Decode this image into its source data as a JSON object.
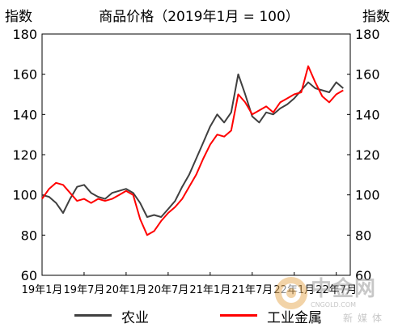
{
  "chart_data": {
    "type": "line",
    "title": "商品价格（2019年1月 = 100）",
    "ylabel_left": "指数",
    "ylabel_right": "指数",
    "ylim": [
      60,
      180
    ],
    "yticks": [
      60,
      80,
      100,
      120,
      140,
      160,
      180
    ],
    "xlim": [
      "2019-01",
      "2022-09"
    ],
    "xticks": [
      "19年1月",
      "19年7月",
      "20年1月",
      "20年7月",
      "21年1月",
      "21年7月",
      "22年1月",
      "22年7月"
    ],
    "grid": false,
    "legend_position": "bottom",
    "series": [
      {
        "name": "农业",
        "color": "#404040",
        "x": [
          "2019-01",
          "2019-02",
          "2019-03",
          "2019-04",
          "2019-05",
          "2019-06",
          "2019-07",
          "2019-08",
          "2019-09",
          "2019-10",
          "2019-11",
          "2019-12",
          "2020-01",
          "2020-02",
          "2020-03",
          "2020-04",
          "2020-05",
          "2020-06",
          "2020-07",
          "2020-08",
          "2020-09",
          "2020-10",
          "2020-11",
          "2020-12",
          "2021-01",
          "2021-02",
          "2021-03",
          "2021-04",
          "2021-05",
          "2021-06",
          "2021-07",
          "2021-08",
          "2021-09",
          "2021-10",
          "2021-11",
          "2021-12",
          "2022-01",
          "2022-02",
          "2022-03",
          "2022-04",
          "2022-05",
          "2022-06",
          "2022-07",
          "2022-08"
        ],
        "values": [
          100,
          99,
          96,
          91,
          98,
          104,
          105,
          101,
          99,
          98,
          101,
          102,
          103,
          101,
          96,
          89,
          90,
          89,
          93,
          97,
          104,
          110,
          118,
          126,
          134,
          140,
          136,
          141,
          160,
          150,
          139,
          136,
          141,
          140,
          143,
          145,
          148,
          152,
          156,
          153,
          152,
          151,
          156,
          153
        ]
      },
      {
        "name": "工业金属",
        "color": "#ff0000",
        "x": [
          "2019-01",
          "2019-02",
          "2019-03",
          "2019-04",
          "2019-05",
          "2019-06",
          "2019-07",
          "2019-08",
          "2019-09",
          "2019-10",
          "2019-11",
          "2019-12",
          "2020-01",
          "2020-02",
          "2020-03",
          "2020-04",
          "2020-05",
          "2020-06",
          "2020-07",
          "2020-08",
          "2020-09",
          "2020-10",
          "2020-11",
          "2020-12",
          "2021-01",
          "2021-02",
          "2021-03",
          "2021-04",
          "2021-05",
          "2021-06",
          "2021-07",
          "2021-08",
          "2021-09",
          "2021-10",
          "2021-11",
          "2021-12",
          "2022-01",
          "2022-02",
          "2022-03",
          "2022-04",
          "2022-05",
          "2022-06",
          "2022-07",
          "2022-08"
        ],
        "values": [
          98,
          103,
          106,
          105,
          101,
          97,
          98,
          96,
          98,
          97,
          98,
          100,
          102,
          100,
          88,
          80,
          82,
          87,
          91,
          94,
          98,
          104,
          110,
          118,
          125,
          130,
          129,
          132,
          150,
          146,
          140,
          142,
          144,
          141,
          146,
          148,
          150,
          151,
          164,
          156,
          149,
          146,
          150,
          152
        ]
      }
    ]
  },
  "legend": [
    "农业",
    "工业金属"
  ],
  "watermark": {
    "brand": "中金网",
    "site": "CNGOLD.COM",
    "tagline": "新媒体"
  }
}
